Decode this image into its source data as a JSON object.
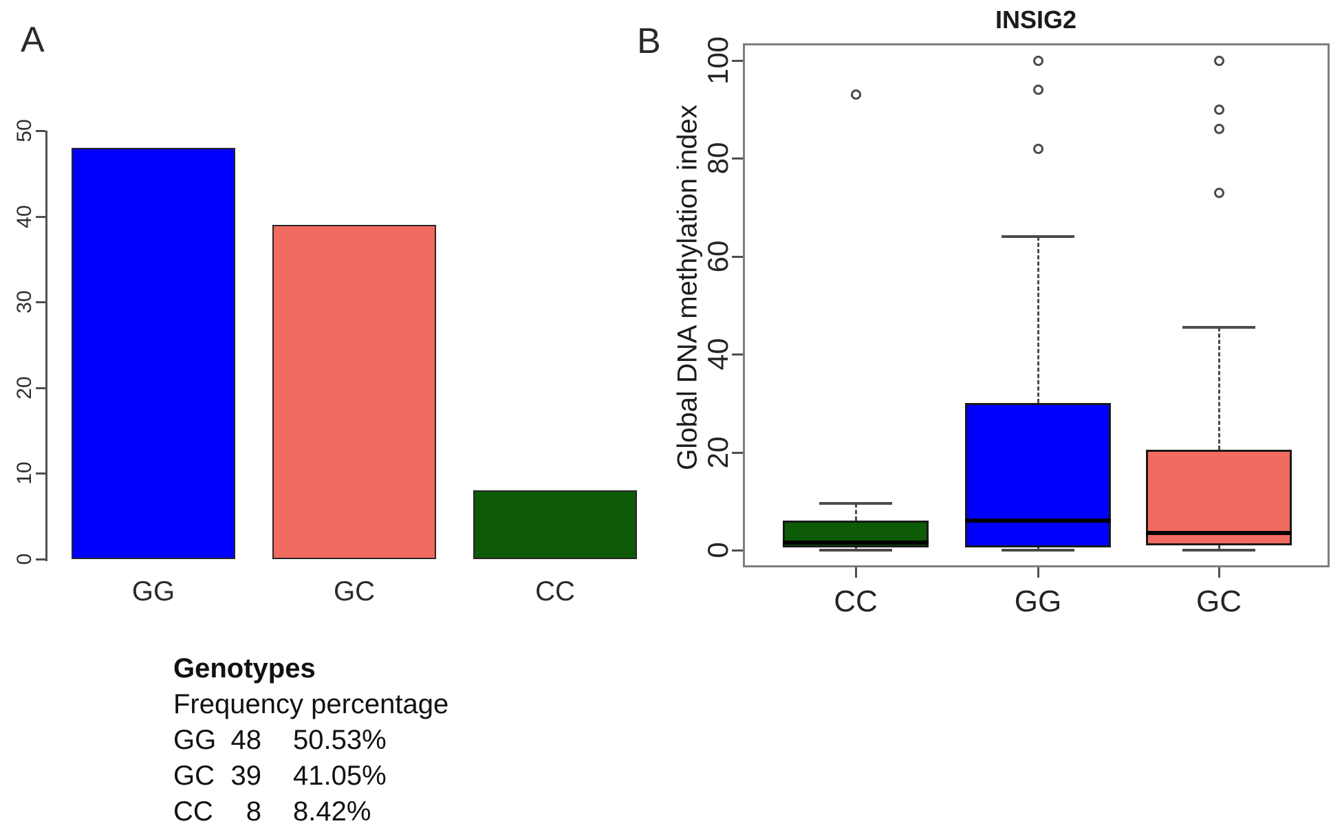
{
  "panels": {
    "a": "A",
    "b": "B"
  },
  "genotype_table": {
    "title": "Genotypes",
    "subtitle": "Frequency percentage",
    "rows": [
      {
        "genotype": "GG",
        "count": "48",
        "percent": "50.53%"
      },
      {
        "genotype": "GC",
        "count": "39",
        "percent": "41.05%"
      },
      {
        "genotype": "CC",
        "count": "8",
        "percent": "8.42%"
      }
    ]
  },
  "chart_data": [
    {
      "type": "bar",
      "panel": "A",
      "title": "",
      "xlabel": "",
      "ylabel": "",
      "categories": [
        "GG",
        "GC",
        "CC"
      ],
      "values": [
        48,
        39,
        8
      ],
      "bar_colors": [
        "#0000fe",
        "#f26b60",
        "#0d5a07"
      ],
      "ylim": [
        0,
        50
      ],
      "yticks": [
        0,
        10,
        20,
        30,
        40,
        50
      ],
      "grid": false,
      "legend": "none"
    },
    {
      "type": "boxplot",
      "panel": "B",
      "title": "INSIG2",
      "xlabel": "",
      "ylabel": "Global DNA methylation index",
      "ylim": [
        0,
        100
      ],
      "yticks": [
        0,
        20,
        40,
        60,
        80,
        100
      ],
      "categories": [
        "CC",
        "GG",
        "GC"
      ],
      "grid": false,
      "legend": "none",
      "boxes": [
        {
          "label": "CC",
          "color": "#0d5a07",
          "whisker_low": 0,
          "q1": 0.5,
          "median": 1.5,
          "q3": 6,
          "whisker_high": 9.5,
          "outliers": [
            93
          ]
        },
        {
          "label": "GG",
          "color": "#0000fe",
          "whisker_low": 0,
          "q1": 0.5,
          "median": 6,
          "q3": 30,
          "whisker_high": 64,
          "outliers": [
            100,
            94,
            82
          ]
        },
        {
          "label": "GC",
          "color": "#f26b60",
          "whisker_low": 0,
          "q1": 1,
          "median": 3.5,
          "q3": 20.5,
          "whisker_high": 45.5,
          "outliers": [
            100,
            90,
            86,
            73
          ]
        }
      ]
    }
  ]
}
